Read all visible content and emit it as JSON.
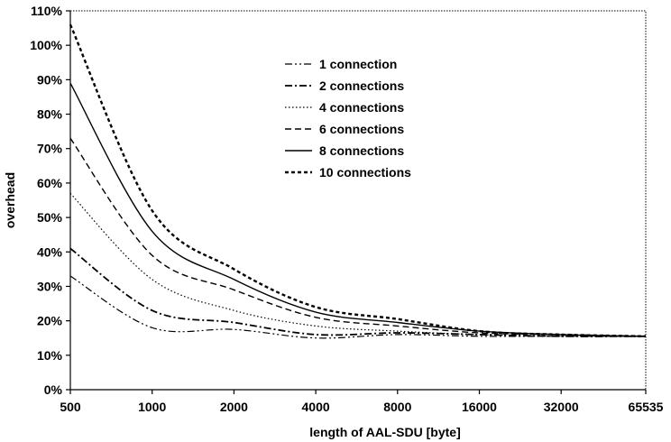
{
  "chart_data": {
    "type": "line",
    "xlabel": "length of AAL-SDU [byte]",
    "ylabel": "overhead",
    "x_scale": "log2",
    "x": [
      500,
      1000,
      2000,
      4000,
      8000,
      16000,
      32000,
      65535
    ],
    "x_tick_labels": [
      "500",
      "1000",
      "2000",
      "4000",
      "8000",
      "16000",
      "32000",
      "65535"
    ],
    "ylim": [
      0,
      110
    ],
    "y_ticks": [
      0,
      10,
      20,
      30,
      40,
      50,
      60,
      70,
      80,
      90,
      100,
      110
    ],
    "y_tick_labels": [
      "0%",
      "10%",
      "20%",
      "30%",
      "40%",
      "50%",
      "60%",
      "70%",
      "80%",
      "90%",
      "100%",
      "110%"
    ],
    "grid": false,
    "legend_position": "top-center",
    "series": [
      {
        "name": "1 connection",
        "dash": "dash-dot-dot",
        "values": [
          33,
          18,
          17.5,
          15,
          16,
          15.5,
          15.5,
          15.5
        ]
      },
      {
        "name": "2 connections",
        "dash": "dash-dot",
        "values": [
          41,
          23,
          19.5,
          16,
          16.5,
          16,
          15.5,
          15.5
        ]
      },
      {
        "name": "4 connections",
        "dash": "dotted",
        "values": [
          57,
          32,
          23,
          18.5,
          17,
          16,
          15.5,
          15.5
        ]
      },
      {
        "name": "6 connections",
        "dash": "dashed",
        "values": [
          73,
          39,
          29,
          21,
          18.5,
          16.5,
          16,
          15.5
        ]
      },
      {
        "name": "8 connections",
        "dash": "solid",
        "values": [
          89,
          46,
          32,
          22.5,
          19.5,
          17,
          16,
          15.5
        ]
      },
      {
        "name": "10 connections",
        "dash": "short-dash",
        "values": [
          106,
          52,
          35,
          24,
          20.5,
          17,
          16,
          15.5
        ]
      }
    ]
  }
}
